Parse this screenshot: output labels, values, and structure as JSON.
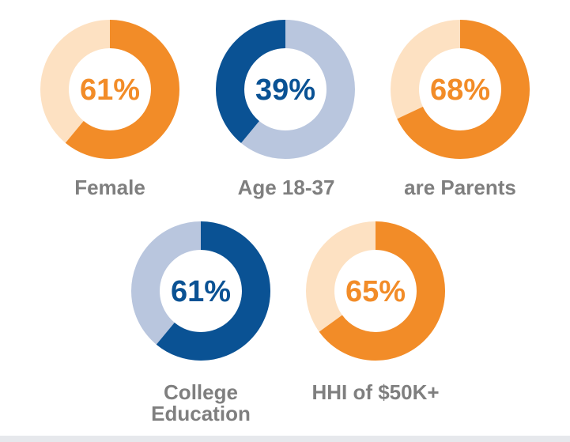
{
  "chart_data": {
    "type": "pie",
    "title": "",
    "items": [
      {
        "label": "Female",
        "value": 61,
        "value_label": "61%",
        "color": "#f28c28",
        "rest_color": "#fde1c2"
      },
      {
        "label": "Age 18-37",
        "value": 39,
        "value_label": "39%",
        "color": "#0a5294",
        "rest_color": "#b9c6de"
      },
      {
        "label": "are Parents",
        "value": 68,
        "value_label": "68%",
        "color": "#f28c28",
        "rest_color": "#fde1c2"
      },
      {
        "label": "College Education",
        "value": 61,
        "value_label": "61%",
        "color": "#0a5294",
        "rest_color": "#b9c6de"
      },
      {
        "label": "HHI of $50K+",
        "value": 65,
        "value_label": "65%",
        "color": "#f28c28",
        "rest_color": "#fde1c2"
      }
    ]
  }
}
